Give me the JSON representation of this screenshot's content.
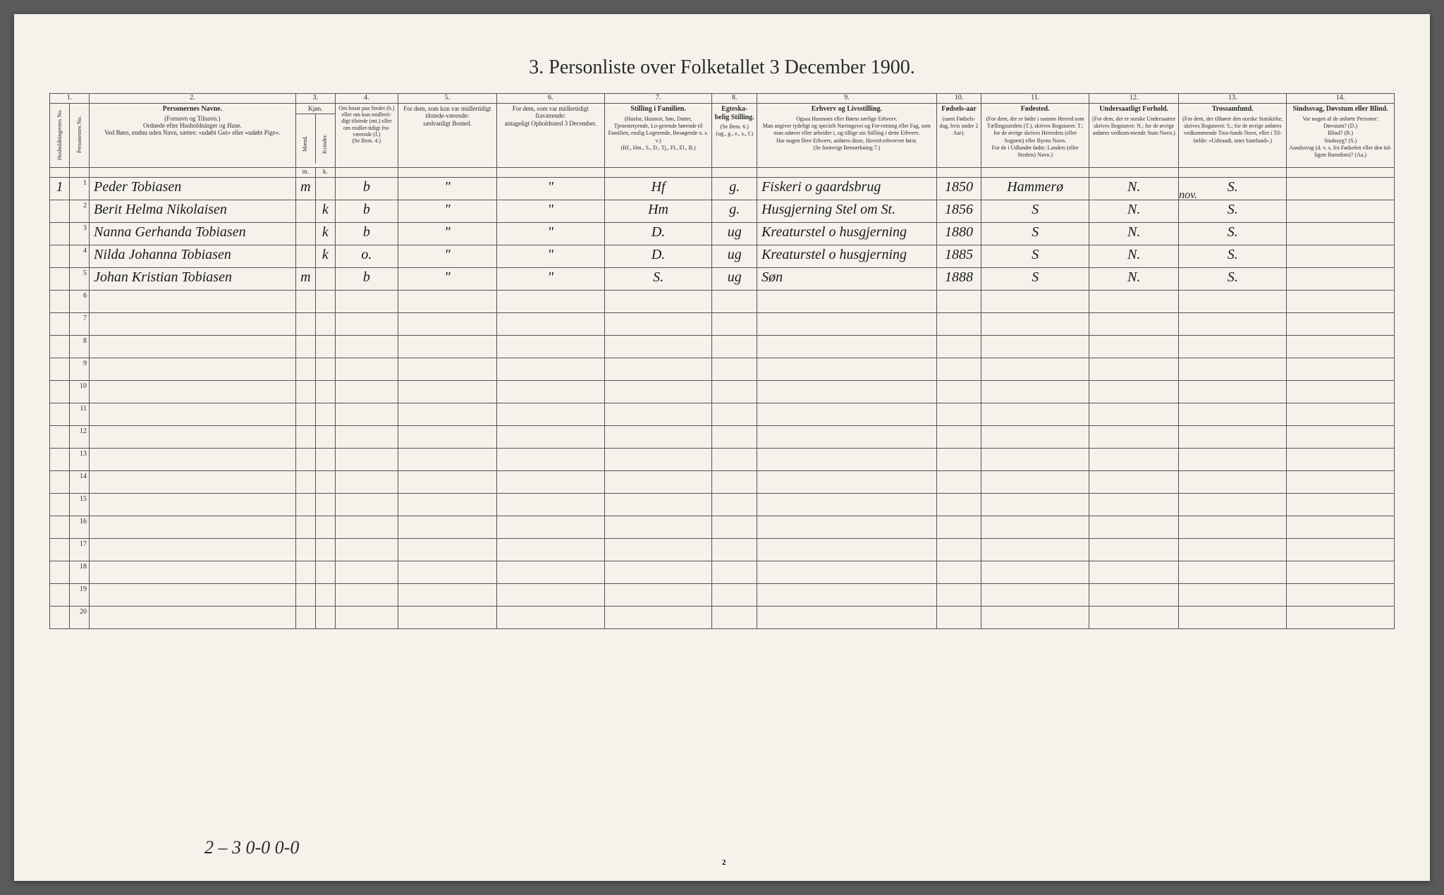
{
  "title": "3.  Personliste over Folketallet 3 December 1900.",
  "col_numbers": [
    "1.",
    "2.",
    "3.",
    "4.",
    "5.",
    "6.",
    "7.",
    "8.",
    "9.",
    "10.",
    "11.",
    "12.",
    "13.",
    "14."
  ],
  "headers": {
    "c1a": "Husholdningernes No.",
    "c1b": "Personernes No.",
    "c2_title": "Personernes Navne.",
    "c2_sub": "(Fornavn og Tilnavn.)\nOrdnede efter Husholdninger og Huse.\nVed Børn, endnu uden Navn, sættes: «udøbt Gut» eller «udøbt Pige».",
    "c3_title": "Kjøn.",
    "c3m": "Mænd.",
    "c3k": "Kvinder.",
    "c4": "Om bosat paa Stedet (b.) eller om kun midlerti-digt tilstede (mt.) eller om midler-tidigt fra-værende (f.)\n(Se Bem. 4.)",
    "c5": "For dem, som kun var midlertidigt tilstede-værende:\nsædvanligt Bosted.",
    "c6": "For dem, som var midlertidigt fraværende:\nantageligt Opholdssted 3 December.",
    "c7_title": "Stilling i Familien.",
    "c7_sub": "(Husfar, Husmor, Søn, Datter, Tjenestetyende, Lo-gerende hørende til Familien, enslig Logerende, Besøgende o. s. v.)\n(Hf., Hm., S., D., Tj., Fl., El., B.)",
    "c8_title": "Egteska-belig Stilling.",
    "c8_sub": "(Se Bem. 6.)\n(ug., g., e., s., f.)",
    "c9_title": "Erhverv og Livsstilling.",
    "c9_sub": "Ogsaa Husmoes eller Børns særlige Erhverv.\nMan angiver tydeligt og specielt Næringsvei og For-retning eller Fag, som man udøver eller arbeider i, og tillige sin Stilling i dette Erhverv.\nHar nogen flere Erhverv, anføres disse, Hoved-erhvervet først.\n(Se forøvrigt Bemærkning 7.)",
    "c10_title": "Fødsels-aar",
    "c10_sub": "(samt Fødsels-dag, hvis under 2 Aar).",
    "c11_title": "Fødested.",
    "c11_sub": "(For dem, der er fødte i samme Herred som Tællingsstedets (T.), skrives Bogstavet: T.; for de øvrige skrives Herredets (eller Sognets) eller Byens Navn.\nFor de i Udlandet fødte: Landets (eller Stedets) Navn.)",
    "c12_title": "Undersaatligt Forhold.",
    "c12_sub": "(For dem, der er norske Undersaatter skrives Bogstavet: N.; for de øvrige anføres vedkom-mende Stats Navn.)",
    "c13_title": "Trossamfund.",
    "c13_sub": "(For dem, der tilhører den norske Statskirke, skrives Bogstavet: S.; for de øvrige anføres vedkommende Tros-funds Navn, eller i Til-fælde: «Udtraadt, intet Samfund».)",
    "c14_title": "Sindssvag, Døvstum eller Blind.",
    "c14_sub": "Var nogen af de anførte Personer:\nDøvstum?  (D.)\nBlind?  (B.)\nSindssyg?  (S.)\nAandssvag (d. v. s. fra Fødselen eller den tid-ligste Barndom)? (Aa.)"
  },
  "annotation_nov": "nov.",
  "rows": [
    {
      "hnr": "1",
      "pnr": "1",
      "name": "Peder Tobiasen",
      "m": "m",
      "k": "",
      "bos": "b",
      "c5": "\"",
      "c6": "\"",
      "fam": "Hf",
      "egt": "g.",
      "erhverv": "Fiskeri o gaardsbrug",
      "aar": "1850",
      "fsted": "Hammerø",
      "und": "N.",
      "tro": "S.",
      "c14": ""
    },
    {
      "hnr": "",
      "pnr": "2",
      "name": "Berit Helma Nikolaisen",
      "m": "",
      "k": "k",
      "bos": "b",
      "c5": "\"",
      "c6": "\"",
      "fam": "Hm",
      "egt": "g.",
      "erhverv": "Husgjerning  Stel om St.",
      "aar": "1856",
      "fsted": "S",
      "und": "N.",
      "tro": "S.",
      "c14": ""
    },
    {
      "hnr": "",
      "pnr": "3",
      "name": "Nanna Gerhanda Tobiasen",
      "m": "",
      "k": "k",
      "bos": "b",
      "c5": "\"",
      "c6": "\"",
      "fam": "D.",
      "egt": "ug",
      "erhverv": "Kreaturstel o husgjerning",
      "aar": "1880",
      "fsted": "S",
      "und": "N.",
      "tro": "S.",
      "c14": ""
    },
    {
      "hnr": "",
      "pnr": "4",
      "name": "Nilda Johanna Tobiasen",
      "m": "",
      "k": "k",
      "bos": "o.",
      "c5": "\"",
      "c6": "\"",
      "fam": "D.",
      "egt": "ug",
      "erhverv": "Kreaturstel o husgjerning",
      "aar": "1885",
      "fsted": "S",
      "und": "N.",
      "tro": "S.",
      "c14": ""
    },
    {
      "hnr": "",
      "pnr": "5",
      "name": "Johan Kristian Tobiasen",
      "m": "m",
      "k": "",
      "bos": "b",
      "c5": "\"",
      "c6": "\"",
      "fam": "S.",
      "egt": "ug",
      "erhverv": "Søn",
      "aar": "1888",
      "fsted": "S",
      "und": "N.",
      "tro": "S.",
      "c14": ""
    }
  ],
  "empty_row_count": 15,
  "footer_hand": "2 – 3    0-0    0-0",
  "page_num": "2"
}
